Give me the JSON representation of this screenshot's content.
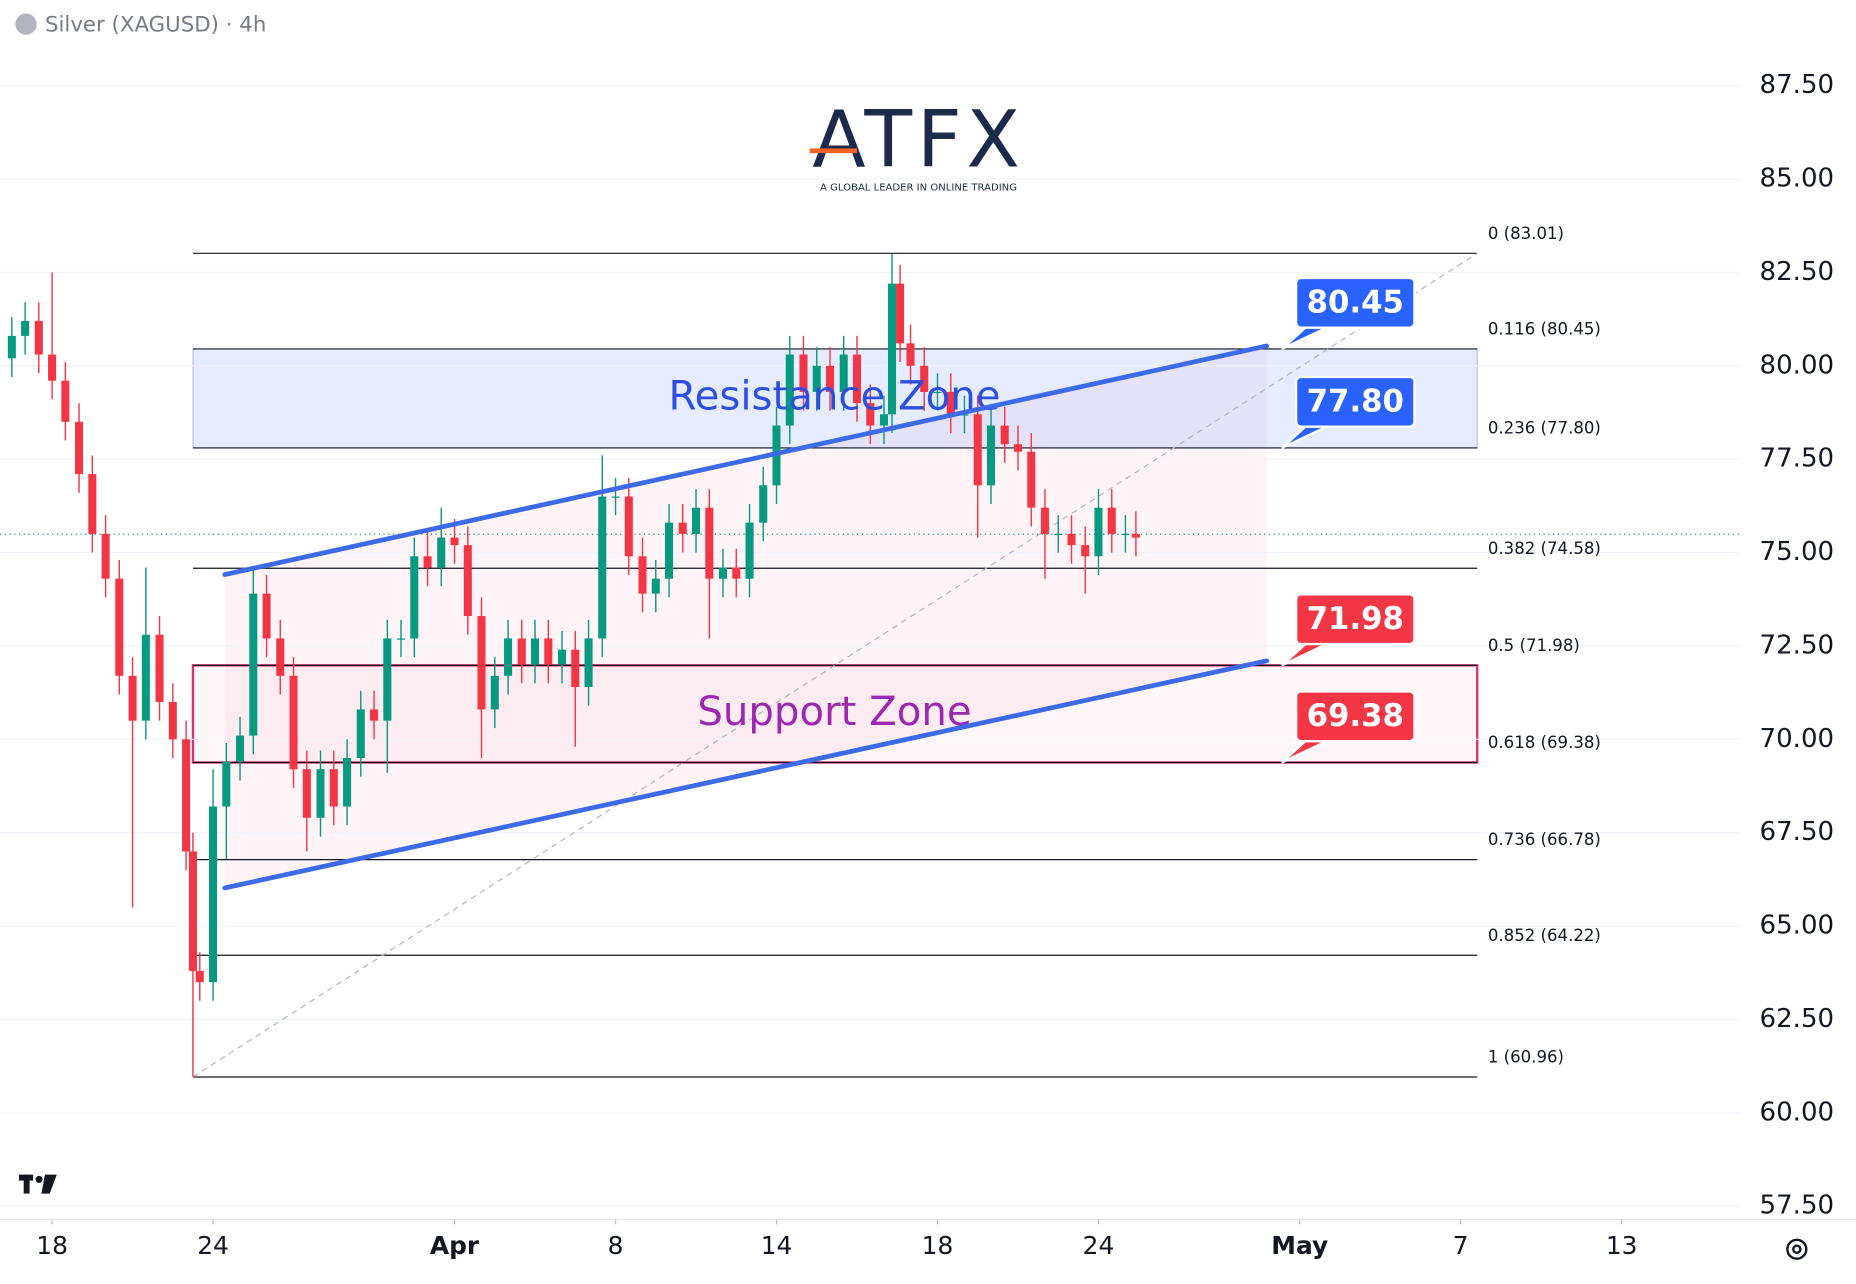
{
  "chart_data": {
    "type": "candlestick",
    "title": "Silver (XAGUSD) · 4h",
    "logo": "ATFX",
    "tagline": "A GLOBAL LEADER IN ONLINE TRADING",
    "up_color": "#089981",
    "down_color": "#f23645",
    "xlim": [
      -1.294,
      41.94
    ],
    "xticks": [
      {
        "value": 0,
        "label": "18"
      },
      {
        "value": 4,
        "label": "24"
      },
      {
        "value": 10,
        "label": "Apr"
      },
      {
        "value": 14,
        "label": "8"
      },
      {
        "value": 18,
        "label": "14"
      },
      {
        "value": 22,
        "label": "18"
      },
      {
        "value": 26,
        "label": "24"
      },
      {
        "value": 31,
        "label": "May"
      },
      {
        "value": 35,
        "label": "7"
      },
      {
        "value": 39,
        "label": "13"
      }
    ],
    "ylim": [
      57.3,
      89.78
    ],
    "yticks": [
      {
        "value": 57.5,
        "label": "57.50"
      },
      {
        "value": 60,
        "label": "60.00"
      },
      {
        "value": 62.5,
        "label": "62.50"
      },
      {
        "value": 65,
        "label": "65.00"
      },
      {
        "value": 67.5,
        "label": "67.50"
      },
      {
        "value": 70,
        "label": "70.00"
      },
      {
        "value": 72.5,
        "label": "72.50"
      },
      {
        "value": 75,
        "label": "75.00"
      },
      {
        "value": 77.5,
        "label": "77.50"
      },
      {
        "value": 80,
        "label": "80.00"
      },
      {
        "value": 82.5,
        "label": "82.50"
      },
      {
        "value": 85,
        "label": "85.00"
      },
      {
        "value": 87.5,
        "label": "87.50"
      }
    ],
    "grid": true,
    "x": [
      -1,
      -0.67,
      -0.33,
      0,
      0.33,
      0.67,
      1,
      1.33,
      1.67,
      2,
      2.33,
      2.67,
      3,
      3.33,
      3.5,
      3.67,
      4,
      4.33,
      4.67,
      5,
      5.33,
      5.67,
      6,
      6.33,
      6.67,
      7,
      7.33,
      7.67,
      8,
      8.33,
      8.67,
      9,
      9.33,
      9.67,
      10,
      10.33,
      10.67,
      11,
      11.33,
      11.67,
      12,
      12.33,
      12.67,
      13,
      13.33,
      13.67,
      14,
      14.33,
      14.67,
      15,
      15.33,
      15.67,
      16,
      16.33,
      16.67,
      17,
      17.33,
      17.67,
      18,
      18.33,
      18.67,
      19,
      19.33,
      19.67,
      20,
      20.33,
      20.67,
      20.87,
      21.07,
      21.33,
      21.67,
      22,
      22.33,
      22.67,
      23,
      23.33,
      23.67,
      24,
      24.33,
      24.67,
      25,
      25.33,
      25.67,
      26,
      26.33,
      26.67,
      26.93
    ],
    "ohlc": [
      [
        80.2,
        81.3,
        79.7,
        80.8
      ],
      [
        80.8,
        81.7,
        80.3,
        81.2
      ],
      [
        81.2,
        81.7,
        79.8,
        80.3
      ],
      [
        80.3,
        82.5,
        79.1,
        79.6
      ],
      [
        79.6,
        80.1,
        78.0,
        78.5
      ],
      [
        78.5,
        79.0,
        76.6,
        77.1
      ],
      [
        77.1,
        77.6,
        75.0,
        75.5
      ],
      [
        75.5,
        76.0,
        73.8,
        74.3
      ],
      [
        74.3,
        74.8,
        71.2,
        71.7
      ],
      [
        71.7,
        72.2,
        65.5,
        70.5
      ],
      [
        70.5,
        74.6,
        70.0,
        72.8
      ],
      [
        72.8,
        73.3,
        70.5,
        71.0
      ],
      [
        71.0,
        71.5,
        69.5,
        70.0
      ],
      [
        70.0,
        70.5,
        66.5,
        67.0
      ],
      [
        67.0,
        67.5,
        60.96,
        63.8
      ],
      [
        63.8,
        64.3,
        63.0,
        63.5
      ],
      [
        63.5,
        69.2,
        63.0,
        68.2
      ],
      [
        68.2,
        69.9,
        66.8,
        69.4
      ],
      [
        69.4,
        70.6,
        68.9,
        70.1
      ],
      [
        70.1,
        74.6,
        69.6,
        73.9
      ],
      [
        73.9,
        74.4,
        72.2,
        72.7
      ],
      [
        72.7,
        73.2,
        71.2,
        71.7
      ],
      [
        71.7,
        72.2,
        68.7,
        69.2
      ],
      [
        69.2,
        69.7,
        67.0,
        67.9
      ],
      [
        67.9,
        69.7,
        67.4,
        69.2
      ],
      [
        69.2,
        69.7,
        67.7,
        68.2
      ],
      [
        68.2,
        70.0,
        67.7,
        69.5
      ],
      [
        69.5,
        71.3,
        69.0,
        70.8
      ],
      [
        70.8,
        71.3,
        70.0,
        70.5
      ],
      [
        70.5,
        73.2,
        69.1,
        72.7
      ],
      [
        72.7,
        73.2,
        72.2,
        72.7
      ],
      [
        72.7,
        75.4,
        72.2,
        74.9
      ],
      [
        74.9,
        75.6,
        74.1,
        74.6
      ],
      [
        74.6,
        76.2,
        74.1,
        75.4
      ],
      [
        75.4,
        75.9,
        74.7,
        75.2
      ],
      [
        75.2,
        75.7,
        72.8,
        73.3
      ],
      [
        73.3,
        73.8,
        69.5,
        70.8
      ],
      [
        70.8,
        72.2,
        70.3,
        71.7
      ],
      [
        71.7,
        73.2,
        71.2,
        72.7
      ],
      [
        72.7,
        73.2,
        71.5,
        72.0
      ],
      [
        72.0,
        73.2,
        71.5,
        72.7
      ],
      [
        72.7,
        73.2,
        71.5,
        72.0
      ],
      [
        72.0,
        72.9,
        71.5,
        72.4
      ],
      [
        72.4,
        72.9,
        69.8,
        71.4
      ],
      [
        71.4,
        73.2,
        70.9,
        72.7
      ],
      [
        72.7,
        77.6,
        72.2,
        76.5
      ],
      [
        76.5,
        77.0,
        76.0,
        76.5
      ],
      [
        76.5,
        77.0,
        74.4,
        74.9
      ],
      [
        74.9,
        75.4,
        73.4,
        73.9
      ],
      [
        73.9,
        74.8,
        73.4,
        74.3
      ],
      [
        74.3,
        76.3,
        73.8,
        75.8
      ],
      [
        75.8,
        76.3,
        75.0,
        75.5
      ],
      [
        75.5,
        76.7,
        75.0,
        76.2
      ],
      [
        76.2,
        76.7,
        72.7,
        74.3
      ],
      [
        74.3,
        75.1,
        73.8,
        74.6
      ],
      [
        74.6,
        75.1,
        73.8,
        74.3
      ],
      [
        74.3,
        76.3,
        73.8,
        75.8
      ],
      [
        75.8,
        77.3,
        75.3,
        76.8
      ],
      [
        76.8,
        78.9,
        76.3,
        78.4
      ],
      [
        78.4,
        80.8,
        77.9,
        80.3
      ],
      [
        80.3,
        80.8,
        78.8,
        79.3
      ],
      [
        79.3,
        80.5,
        78.8,
        80.0
      ],
      [
        80.0,
        80.5,
        78.8,
        79.3
      ],
      [
        79.3,
        80.8,
        78.8,
        80.3
      ],
      [
        80.3,
        80.8,
        78.5,
        79.0
      ],
      [
        79.0,
        79.5,
        77.9,
        78.4
      ],
      [
        78.4,
        79.2,
        77.9,
        78.7
      ],
      [
        78.7,
        83.01,
        78.2,
        82.2
      ],
      [
        82.2,
        82.7,
        80.1,
        80.6
      ],
      [
        80.6,
        81.1,
        79.5,
        80.0
      ],
      [
        80.0,
        80.5,
        78.8,
        79.3
      ],
      [
        79.3,
        79.8,
        78.8,
        79.3
      ],
      [
        79.3,
        79.8,
        78.2,
        78.7
      ],
      [
        78.7,
        79.2,
        78.2,
        78.7
      ],
      [
        78.7,
        79.2,
        75.4,
        76.8
      ],
      [
        76.8,
        78.9,
        76.3,
        78.4
      ],
      [
        78.4,
        78.9,
        77.4,
        77.9
      ],
      [
        77.9,
        78.4,
        77.2,
        77.7
      ],
      [
        77.7,
        78.2,
        75.7,
        76.2
      ],
      [
        76.2,
        76.7,
        74.3,
        75.5
      ],
      [
        75.5,
        76.0,
        75.0,
        75.5
      ],
      [
        75.5,
        76.0,
        74.7,
        75.2
      ],
      [
        75.2,
        75.7,
        73.9,
        74.9
      ],
      [
        74.9,
        76.7,
        74.4,
        76.2
      ],
      [
        76.2,
        76.7,
        75.0,
        75.5
      ],
      [
        75.5,
        76.0,
        75.0,
        75.5
      ],
      [
        75.5,
        76.1,
        74.9,
        75.4
      ]
    ],
    "last_price": 75.49,
    "fib_levels": [
      {
        "value": 83.01,
        "label": "0 (83.01)"
      },
      {
        "value": 80.45,
        "label": "0.116 (80.45)"
      },
      {
        "value": 77.8,
        "label": "0.236 (77.80)"
      },
      {
        "value": 74.58,
        "label": "0.382 (74.58)"
      },
      {
        "value": 71.98,
        "label": "0.5 (71.98)"
      },
      {
        "value": 69.38,
        "label": "0.618 (69.38)"
      },
      {
        "value": 66.78,
        "label": "0.736 (66.78)"
      },
      {
        "value": 64.22,
        "label": "0.852 (64.22)"
      },
      {
        "value": 60.96,
        "label": "1 (60.96)"
      }
    ],
    "zones": [
      {
        "name": "Resistance Zone",
        "low": 77.8,
        "high": 80.45,
        "color": "#2962ff"
      },
      {
        "name": "Support Zone",
        "low": 69.38,
        "high": 71.98,
        "color": "#d81b60"
      }
    ],
    "price_tags": {
      "values": [
        80.45,
        77.8,
        71.98,
        69.38
      ],
      "value_labels": [
        "80.45",
        "77.80",
        "71.98",
        "69.38"
      ],
      "colors": [
        "#2962ff",
        "#2962ff",
        "#f23645",
        "#f23645"
      ]
    },
    "channel": [
      {
        "x": [
          4.29,
          30.18
        ],
        "y": [
          74.41,
          80.53
        ]
      },
      {
        "x": [
          4.29,
          30.18
        ],
        "y": [
          66.02,
          72.1
        ]
      }
    ]
  }
}
